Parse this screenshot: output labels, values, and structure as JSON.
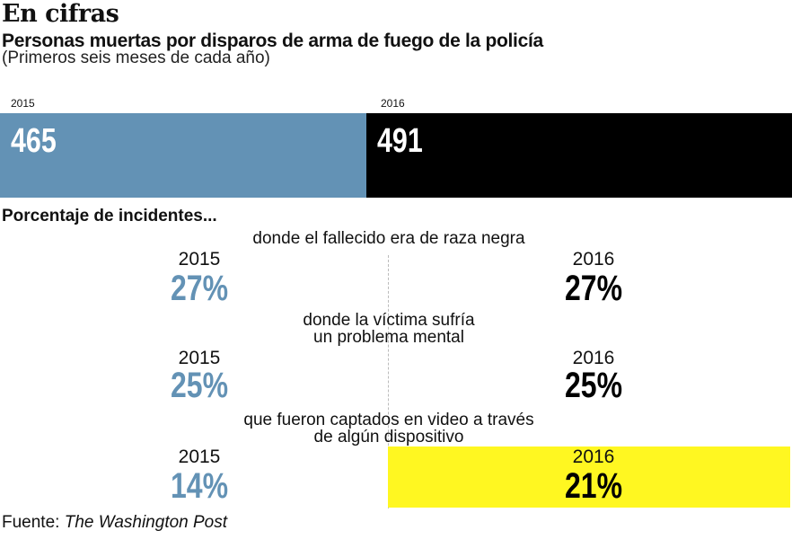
{
  "title": "En cifras",
  "subtitle": "Personas muertas por disparos de arma de fuego de la policía",
  "note": "(Primeros seis meses de cada año)",
  "colors": {
    "2015": "#6392b5",
    "2016": "#000000",
    "highlight": "#fff721"
  },
  "chart_data": [
    {
      "type": "bar",
      "orientation": "horizontal-stacked",
      "categories": [
        "2015",
        "2016"
      ],
      "values": [
        465,
        491
      ],
      "value_labels": [
        "465",
        "491"
      ]
    },
    {
      "type": "table",
      "section_title": "Porcentaje de incidentes...",
      "rows": [
        {
          "label_lines": [
            "donde el fallecido era de raza negra"
          ],
          "year_a": "2015",
          "value_a": "27%",
          "year_b": "2016",
          "value_b": "27%"
        },
        {
          "label_lines": [
            "donde la víctima sufría",
            "un problema mental"
          ],
          "year_a": "2015",
          "value_a": "25%",
          "year_b": "2016",
          "value_b": "25%"
        },
        {
          "label_lines": [
            "que fueron captados en video a través",
            "de algún dispositivo"
          ],
          "year_a": "2015",
          "value_a": "14%",
          "year_b": "2016",
          "value_b": "21%",
          "highlight": "2016"
        }
      ]
    }
  ],
  "source_label": "Fuente: ",
  "source_name": "The Washington Post"
}
